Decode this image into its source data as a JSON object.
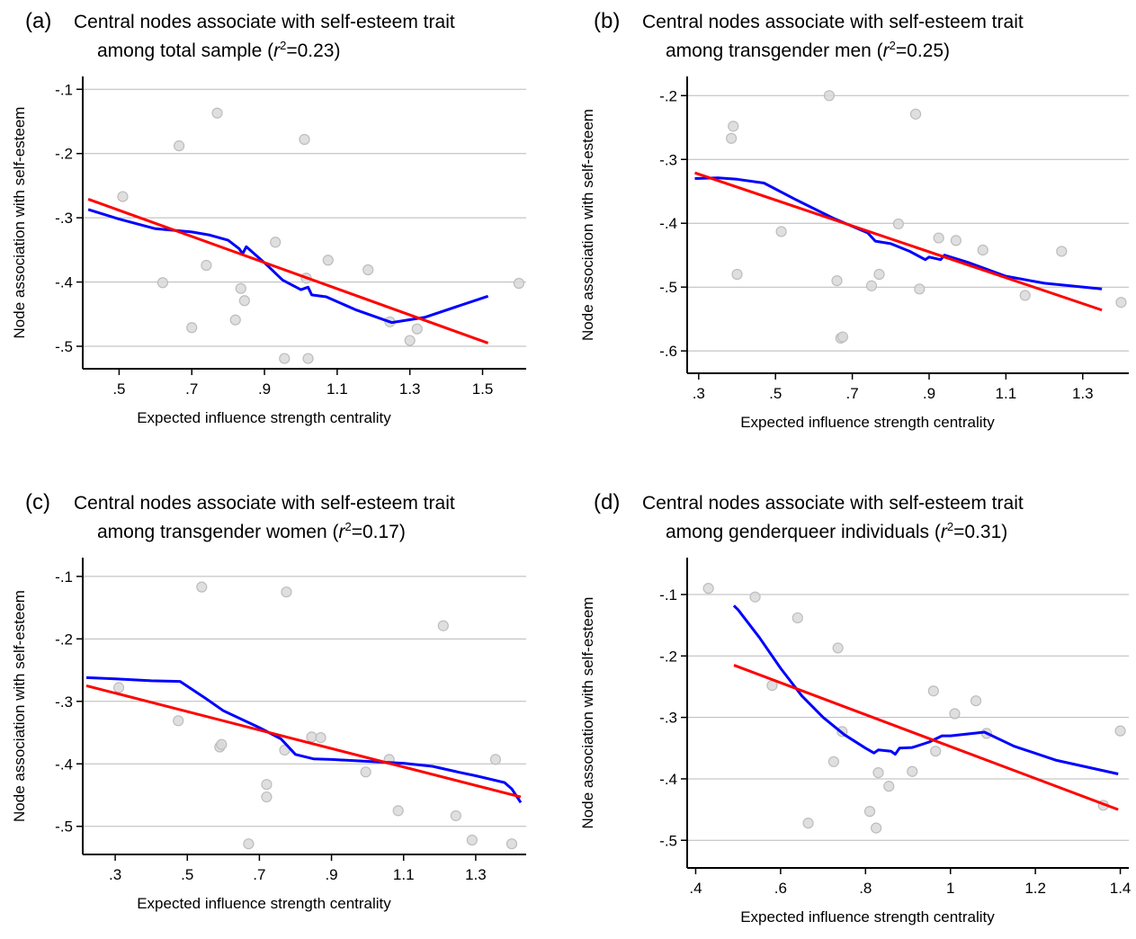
{
  "chart_data": [
    {
      "id": "a",
      "type": "scatter",
      "panel_label": "(a)",
      "title_line1": "Central nodes associate with self-esteem trait",
      "title_line2_prefix": "among total sample (",
      "r2_symbol": "r",
      "r2_sup": "2",
      "r2_value": "=0.23)",
      "xlabel": "Expected influence strength centrality",
      "ylabel": "Node association with self-esteem",
      "xlim": [
        0.4,
        1.62
      ],
      "ylim": [
        -0.535,
        -0.08
      ],
      "xticks": [
        0.5,
        0.7,
        0.9,
        1.1,
        1.3,
        1.5
      ],
      "xtick_labels": [
        ".5",
        ".7",
        ".9",
        "1.1",
        "1.3",
        "1.5"
      ],
      "yticks": [
        -0.1,
        -0.2,
        -0.3,
        -0.4,
        -0.5
      ],
      "ytick_labels": [
        "-.1",
        "-.2",
        "-.3",
        "-.4",
        "-.5"
      ],
      "grid": true,
      "points": [
        [
          0.51,
          -0.267
        ],
        [
          0.62,
          -0.401
        ],
        [
          0.665,
          -0.188
        ],
        [
          0.7,
          -0.471
        ],
        [
          0.74,
          -0.374
        ],
        [
          0.77,
          -0.137
        ],
        [
          0.82,
          -0.459
        ],
        [
          0.835,
          -0.41
        ],
        [
          0.845,
          -0.429
        ],
        [
          0.93,
          -0.338
        ],
        [
          0.955,
          -0.519
        ],
        [
          1.01,
          -0.178
        ],
        [
          1.015,
          -0.394
        ],
        [
          1.02,
          -0.519
        ],
        [
          1.075,
          -0.366
        ],
        [
          1.185,
          -0.381
        ],
        [
          1.245,
          -0.462
        ],
        [
          1.3,
          -0.491
        ],
        [
          1.32,
          -0.473
        ],
        [
          1.6,
          -0.402
        ]
      ],
      "fit_line": [
        [
          0.415,
          -0.271
        ],
        [
          1.515,
          -0.495
        ]
      ],
      "lowess": [
        [
          0.415,
          -0.287
        ],
        [
          0.5,
          -0.302
        ],
        [
          0.6,
          -0.317
        ],
        [
          0.7,
          -0.322
        ],
        [
          0.75,
          -0.327
        ],
        [
          0.8,
          -0.335
        ],
        [
          0.83,
          -0.348
        ],
        [
          0.84,
          -0.356
        ],
        [
          0.85,
          -0.345
        ],
        [
          0.9,
          -0.37
        ],
        [
          0.95,
          -0.397
        ],
        [
          1.0,
          -0.412
        ],
        [
          1.02,
          -0.408
        ],
        [
          1.03,
          -0.42
        ],
        [
          1.07,
          -0.423
        ],
        [
          1.15,
          -0.443
        ],
        [
          1.25,
          -0.463
        ],
        [
          1.34,
          -0.455
        ],
        [
          1.515,
          -0.422
        ]
      ]
    },
    {
      "id": "b",
      "type": "scatter",
      "panel_label": "(b)",
      "title_line1": "Central nodes associate with self-esteem trait",
      "title_line2_prefix": "among transgender men (",
      "r2_symbol": "r",
      "r2_sup": "2",
      "r2_value": "=0.25)",
      "xlabel": "Expected influence strength centrality",
      "ylabel": "Node association with self-esteem",
      "xlim": [
        0.27,
        1.42
      ],
      "ylim": [
        -0.635,
        -0.17
      ],
      "xticks": [
        0.3,
        0.5,
        0.7,
        0.9,
        1.1,
        1.3
      ],
      "xtick_labels": [
        ".3",
        ".5",
        ".7",
        ".9",
        "1.1",
        "1.3"
      ],
      "yticks": [
        -0.2,
        -0.3,
        -0.4,
        -0.5,
        -0.6
      ],
      "ytick_labels": [
        "-.2",
        "-.3",
        "-.4",
        "-.5",
        "-.6"
      ],
      "grid": true,
      "points": [
        [
          0.385,
          -0.267
        ],
        [
          0.39,
          -0.248
        ],
        [
          0.4,
          -0.48
        ],
        [
          0.515,
          -0.413
        ],
        [
          0.64,
          -0.2
        ],
        [
          0.66,
          -0.49
        ],
        [
          0.67,
          -0.58
        ],
        [
          0.675,
          -0.578
        ],
        [
          0.75,
          -0.498
        ],
        [
          0.77,
          -0.48
        ],
        [
          0.82,
          -0.401
        ],
        [
          0.865,
          -0.229
        ],
        [
          0.875,
          -0.503
        ],
        [
          0.925,
          -0.423
        ],
        [
          0.97,
          -0.427
        ],
        [
          1.04,
          -0.442
        ],
        [
          1.15,
          -0.513
        ],
        [
          1.245,
          -0.444
        ],
        [
          1.4,
          -0.524
        ]
      ],
      "fit_line": [
        [
          0.29,
          -0.321
        ],
        [
          1.35,
          -0.536
        ]
      ],
      "lowess": [
        [
          0.29,
          -0.33
        ],
        [
          0.35,
          -0.329
        ],
        [
          0.4,
          -0.331
        ],
        [
          0.47,
          -0.337
        ],
        [
          0.55,
          -0.362
        ],
        [
          0.65,
          -0.392
        ],
        [
          0.74,
          -0.415
        ],
        [
          0.76,
          -0.428
        ],
        [
          0.8,
          -0.432
        ],
        [
          0.85,
          -0.444
        ],
        [
          0.89,
          -0.457
        ],
        [
          0.9,
          -0.453
        ],
        [
          0.93,
          -0.457
        ],
        [
          0.94,
          -0.45
        ],
        [
          1.0,
          -0.461
        ],
        [
          1.1,
          -0.483
        ],
        [
          1.2,
          -0.494
        ],
        [
          1.35,
          -0.503
        ]
      ]
    },
    {
      "id": "c",
      "type": "scatter",
      "panel_label": "(c)",
      "title_line1": "Central nodes associate with self-esteem trait",
      "title_line2_prefix": "among transgender women (",
      "r2_symbol": "r",
      "r2_sup": "2",
      "r2_value": "=0.17)",
      "xlabel": "Expected influence strength centrality",
      "ylabel": "Node association with self-esteem",
      "xlim": [
        0.21,
        1.44
      ],
      "ylim": [
        -0.545,
        -0.07
      ],
      "xticks": [
        0.3,
        0.5,
        0.7,
        0.9,
        1.1,
        1.3
      ],
      "xtick_labels": [
        ".3",
        ".5",
        ".7",
        ".9",
        "1.1",
        "1.3"
      ],
      "yticks": [
        -0.1,
        -0.2,
        -0.3,
        -0.4,
        -0.5
      ],
      "ytick_labels": [
        "-.1",
        "-.2",
        "-.3",
        "-.4",
        "-.5"
      ],
      "grid": true,
      "points": [
        [
          0.31,
          -0.278
        ],
        [
          0.475,
          -0.331
        ],
        [
          0.54,
          -0.117
        ],
        [
          0.59,
          -0.373
        ],
        [
          0.595,
          -0.369
        ],
        [
          0.67,
          -0.528
        ],
        [
          0.72,
          -0.433
        ],
        [
          0.72,
          -0.453
        ],
        [
          0.77,
          -0.378
        ],
        [
          0.775,
          -0.125
        ],
        [
          0.845,
          -0.357
        ],
        [
          0.87,
          -0.358
        ],
        [
          0.995,
          -0.413
        ],
        [
          1.06,
          -0.393
        ],
        [
          1.085,
          -0.475
        ],
        [
          1.21,
          -0.179
        ],
        [
          1.245,
          -0.483
        ],
        [
          1.29,
          -0.522
        ],
        [
          1.355,
          -0.393
        ],
        [
          1.4,
          -0.528
        ]
      ],
      "fit_line": [
        [
          0.22,
          -0.275
        ],
        [
          1.425,
          -0.453
        ]
      ],
      "lowess": [
        [
          0.22,
          -0.262
        ],
        [
          0.3,
          -0.264
        ],
        [
          0.4,
          -0.267
        ],
        [
          0.48,
          -0.268
        ],
        [
          0.55,
          -0.295
        ],
        [
          0.6,
          -0.315
        ],
        [
          0.7,
          -0.342
        ],
        [
          0.76,
          -0.36
        ],
        [
          0.8,
          -0.385
        ],
        [
          0.85,
          -0.392
        ],
        [
          0.9,
          -0.393
        ],
        [
          1.0,
          -0.396
        ],
        [
          1.1,
          -0.399
        ],
        [
          1.18,
          -0.404
        ],
        [
          1.25,
          -0.413
        ],
        [
          1.3,
          -0.419
        ],
        [
          1.38,
          -0.43
        ],
        [
          1.4,
          -0.44
        ],
        [
          1.425,
          -0.462
        ]
      ]
    },
    {
      "id": "d",
      "type": "scatter",
      "panel_label": "(d)",
      "title_line1": "Central nodes associate with self-esteem trait",
      "title_line2_prefix": "among genderqueer individuals (",
      "r2_symbol": "r",
      "r2_sup": "2",
      "r2_value": "=0.31)",
      "xlabel": "Expected influence strength centrality",
      "ylabel": "Node association with self-esteem",
      "xlim": [
        0.38,
        1.42
      ],
      "ylim": [
        -0.545,
        -0.04
      ],
      "xticks": [
        0.4,
        0.6,
        0.8,
        1.0,
        1.2,
        1.4
      ],
      "xtick_labels": [
        ".4",
        ".6",
        ".8",
        "1",
        "1.2",
        "1.4"
      ],
      "yticks": [
        -0.1,
        -0.2,
        -0.3,
        -0.4,
        -0.5
      ],
      "ytick_labels": [
        "-.1",
        "-.2",
        "-.3",
        "-.4",
        "-.5"
      ],
      "grid": true,
      "points": [
        [
          0.43,
          -0.09
        ],
        [
          0.54,
          -0.104
        ],
        [
          0.58,
          -0.248
        ],
        [
          0.64,
          -0.138
        ],
        [
          0.665,
          -0.472
        ],
        [
          0.725,
          -0.372
        ],
        [
          0.735,
          -0.187
        ],
        [
          0.745,
          -0.323
        ],
        [
          0.81,
          -0.453
        ],
        [
          0.825,
          -0.48
        ],
        [
          0.83,
          -0.39
        ],
        [
          0.855,
          -0.412
        ],
        [
          0.91,
          -0.388
        ],
        [
          0.96,
          -0.257
        ],
        [
          0.965,
          -0.355
        ],
        [
          1.01,
          -0.294
        ],
        [
          1.06,
          -0.273
        ],
        [
          1.085,
          -0.326
        ],
        [
          1.36,
          -0.443
        ],
        [
          1.4,
          -0.322
        ]
      ],
      "fit_line": [
        [
          0.49,
          -0.215
        ],
        [
          1.395,
          -0.45
        ]
      ],
      "lowess": [
        [
          0.49,
          -0.118
        ],
        [
          0.5,
          -0.125
        ],
        [
          0.55,
          -0.17
        ],
        [
          0.6,
          -0.22
        ],
        [
          0.65,
          -0.265
        ],
        [
          0.7,
          -0.3
        ],
        [
          0.75,
          -0.328
        ],
        [
          0.8,
          -0.35
        ],
        [
          0.82,
          -0.358
        ],
        [
          0.83,
          -0.353
        ],
        [
          0.86,
          -0.355
        ],
        [
          0.87,
          -0.36
        ],
        [
          0.88,
          -0.35
        ],
        [
          0.91,
          -0.349
        ],
        [
          0.95,
          -0.34
        ],
        [
          0.98,
          -0.33
        ],
        [
          1.0,
          -0.33
        ],
        [
          1.08,
          -0.324
        ],
        [
          1.15,
          -0.347
        ],
        [
          1.25,
          -0.37
        ],
        [
          1.395,
          -0.392
        ]
      ]
    }
  ],
  "colors": {
    "fit_line": "#ff0000",
    "lowess_line": "#0000ff",
    "points_fill": "#d9d9d9",
    "points_stroke": "#bdbdbd",
    "grid": "#b8b8b8",
    "axis": "#000000"
  }
}
